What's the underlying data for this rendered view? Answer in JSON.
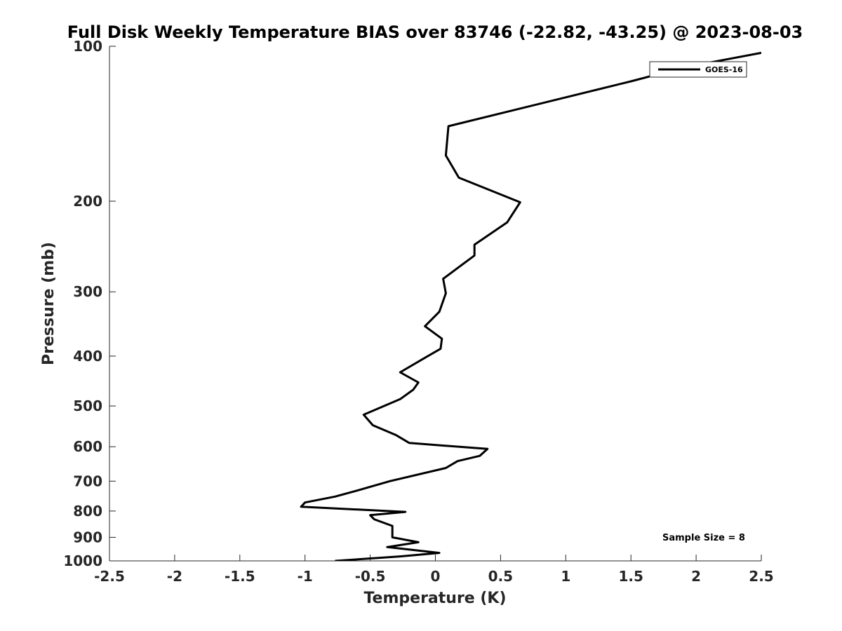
{
  "chart_data": {
    "type": "line",
    "title": "Full Disk Weekly Temperature BIAS over 83746 (-22.82, -43.25) @ 2023-08-03",
    "xlabel": "Temperature (K)",
    "ylabel": "Pressure (mb)",
    "xlim": [
      -2.5,
      2.5
    ],
    "ylim": [
      100,
      1000
    ],
    "yscale": "log",
    "yreversed": true,
    "grid": false,
    "legend_position": "top-right",
    "x_ticks": [
      "-2.5",
      "-2",
      "-1.5",
      "-1",
      "-0.5",
      "0",
      "0.5",
      "1",
      "1.5",
      "2",
      "2.5"
    ],
    "y_ticks": [
      "100",
      "200",
      "300",
      "400",
      "500",
      "600",
      "700",
      "800",
      "900",
      "1000"
    ],
    "series": [
      {
        "name": "GOES-16",
        "color": "#000000",
        "points": [
          {
            "x": 2.5,
            "y": 103
          },
          {
            "x": 1.9,
            "y": 110
          },
          {
            "x": 1.5,
            "y": 117
          },
          {
            "x": 0.1,
            "y": 143
          },
          {
            "x": 0.08,
            "y": 163
          },
          {
            "x": 0.18,
            "y": 180
          },
          {
            "x": 0.65,
            "y": 201
          },
          {
            "x": 0.55,
            "y": 220
          },
          {
            "x": 0.3,
            "y": 243
          },
          {
            "x": 0.3,
            "y": 255
          },
          {
            "x": 0.06,
            "y": 283
          },
          {
            "x": 0.08,
            "y": 302
          },
          {
            "x": 0.03,
            "y": 328
          },
          {
            "x": -0.08,
            "y": 350
          },
          {
            "x": 0.05,
            "y": 370
          },
          {
            "x": 0.04,
            "y": 387
          },
          {
            "x": -0.08,
            "y": 403
          },
          {
            "x": -0.27,
            "y": 430
          },
          {
            "x": -0.13,
            "y": 450
          },
          {
            "x": -0.17,
            "y": 465
          },
          {
            "x": -0.27,
            "y": 485
          },
          {
            "x": -0.55,
            "y": 520
          },
          {
            "x": -0.48,
            "y": 545
          },
          {
            "x": -0.3,
            "y": 570
          },
          {
            "x": -0.2,
            "y": 590
          },
          {
            "x": 0.4,
            "y": 606
          },
          {
            "x": 0.34,
            "y": 625
          },
          {
            "x": 0.17,
            "y": 640
          },
          {
            "x": 0.08,
            "y": 660
          },
          {
            "x": -0.35,
            "y": 700
          },
          {
            "x": -0.6,
            "y": 730
          },
          {
            "x": -0.77,
            "y": 750
          },
          {
            "x": -1.0,
            "y": 770
          },
          {
            "x": -1.03,
            "y": 785
          },
          {
            "x": -0.23,
            "y": 803
          },
          {
            "x": -0.5,
            "y": 815
          },
          {
            "x": -0.47,
            "y": 830
          },
          {
            "x": -0.33,
            "y": 855
          },
          {
            "x": -0.33,
            "y": 900
          },
          {
            "x": -0.13,
            "y": 920
          },
          {
            "x": -0.37,
            "y": 940
          },
          {
            "x": 0.03,
            "y": 965
          },
          {
            "x": -0.27,
            "y": 980
          },
          {
            "x": -0.77,
            "y": 1000
          }
        ]
      }
    ],
    "annotations": [
      "Sample Size = 8"
    ]
  }
}
